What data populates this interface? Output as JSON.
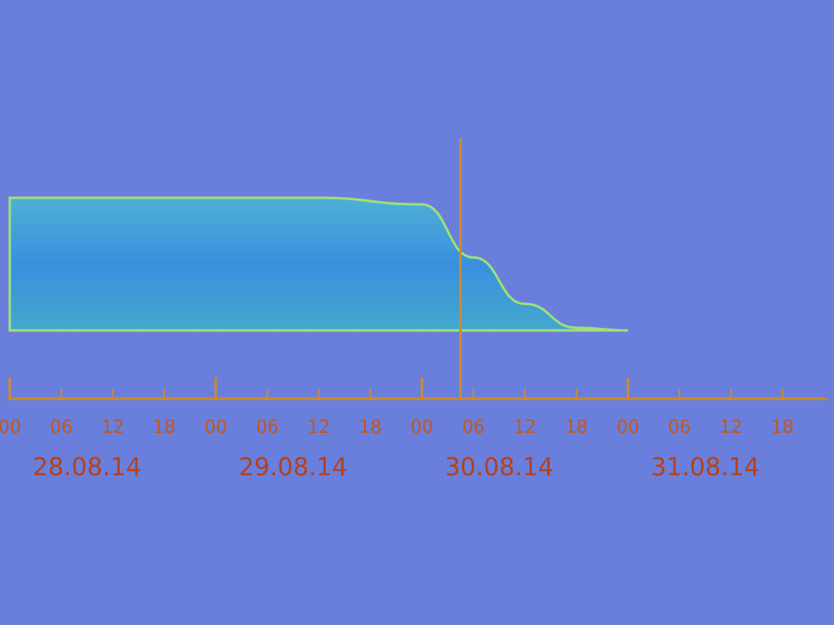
{
  "colors": {
    "background": "#6a7fdb",
    "band_fill": "#3a8fde",
    "band_edge": "#9ee07a",
    "axis": "#d08a28",
    "marker": "#d08a28",
    "tick_label": "#c2571e",
    "date_label": "#b8401a"
  },
  "chart_data": {
    "type": "area",
    "x_axis": {
      "unit": "hours",
      "day_labels": [
        "28.08.14",
        "29.08.14",
        "30.08.14",
        "31.08.14"
      ],
      "hour_ticks": [
        "00",
        "06",
        "12",
        "18"
      ]
    },
    "series": [
      {
        "points": [
          {
            "x": "28.08.14 00:00",
            "y": 1.0
          },
          {
            "x": "29.08.14 12:00",
            "y": 1.0
          },
          {
            "x": "30.08.14 00:00",
            "y": 0.95
          },
          {
            "x": "30.08.14 06:00",
            "y": 0.55
          },
          {
            "x": "30.08.14 12:00",
            "y": 0.2
          },
          {
            "x": "30.08.14 18:00",
            "y": 0.02
          },
          {
            "x": "31.08.14 00:00",
            "y": 0.0
          }
        ]
      }
    ],
    "marker_line": {
      "x": "30.08.14 04:30"
    },
    "ylim": [
      0,
      1
    ],
    "grid": false,
    "legend": "none"
  }
}
